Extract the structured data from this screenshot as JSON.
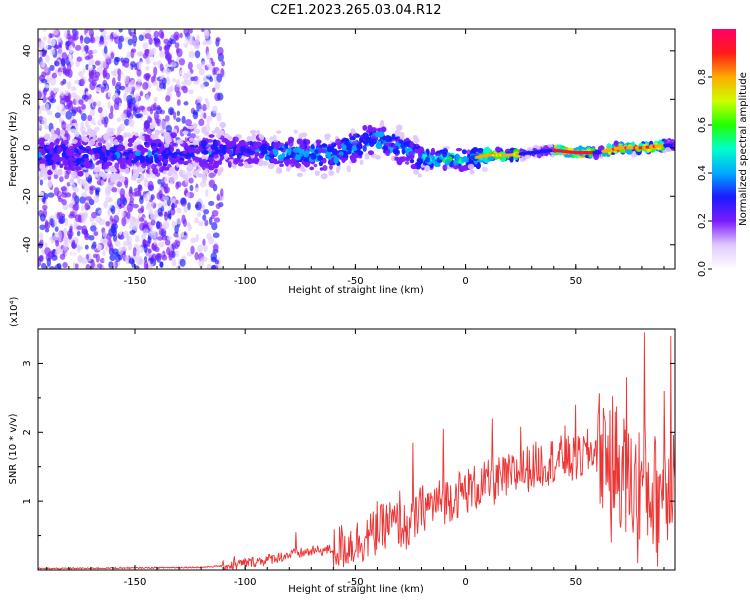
{
  "title": "C2E1.2023.265.03.04.R12",
  "chart_data": [
    {
      "type": "heatmap",
      "xlabel": "Height of straight line (km)",
      "ylabel": "Frequency (Hz)",
      "xlim": [
        -194,
        95
      ],
      "ylim": [
        -50,
        49
      ],
      "xticks": [
        -150,
        -100,
        -50,
        0,
        50
      ],
      "yticks": [
        -40,
        -20,
        0,
        20,
        40
      ],
      "colorbar": {
        "label": "Normalized spectral amplitude",
        "range": [
          0.0,
          1.0
        ],
        "ticks": [
          "0.0",
          "0.2",
          "0.4",
          "0.6",
          "0.8"
        ],
        "colormap": [
          "#ffffff",
          "#e0c8ff",
          "#7a1cff",
          "#1a1aff",
          "#00aaff",
          "#00ffcc",
          "#22ff00",
          "#ccff00",
          "#ffaa00",
          "#ff1a1a",
          "#ff0066"
        ]
      },
      "ridge_frequency_hz": {
        "x": [
          -190,
          -150,
          -120,
          -100,
          -80,
          -60,
          -40,
          -20,
          0,
          10,
          20,
          30,
          40,
          50,
          60,
          70,
          80,
          90
        ],
        "y": [
          -3,
          -3,
          -2,
          -1,
          -2,
          -3,
          4,
          -4,
          -5,
          -3,
          -3,
          -2,
          -1,
          -2,
          -2,
          0,
          0,
          1
        ]
      }
    },
    {
      "type": "line",
      "xlabel": "Height of straight line (km)",
      "ylabel": "SNR (10 * v/v)",
      "y_multiplier": "(x10⁴)",
      "xlim": [
        -194,
        95
      ],
      "ylim": [
        0,
        3.5
      ],
      "xticks": [
        -150,
        -100,
        -50,
        0,
        50
      ],
      "yticks": [
        "1",
        "2",
        "3"
      ],
      "line_color": "#ee3333",
      "series": [
        {
          "x": [
            -194,
            -150,
            -120,
            -105,
            -100,
            -90,
            -80,
            -70,
            -60,
            -50,
            -40,
            -35,
            -25,
            -20,
            -10,
            0,
            10,
            20,
            30,
            40,
            45,
            50,
            55,
            60,
            65,
            70,
            75,
            80,
            85,
            90,
            95
          ],
          "y": [
            0.02,
            0.03,
            0.04,
            0.07,
            0.1,
            0.15,
            0.22,
            0.27,
            0.3,
            0.4,
            0.55,
            0.7,
            0.6,
            0.9,
            1.0,
            1.15,
            1.25,
            1.35,
            1.5,
            1.6,
            1.62,
            1.58,
            1.7,
            1.75,
            1.7,
            1.5,
            1.2,
            1.3,
            1.1,
            1.2,
            1.5
          ]
        }
      ],
      "peaks": {
        "x": [
          -105,
          -77,
          -40,
          -30,
          -24,
          -10,
          12,
          25,
          45,
          50,
          63,
          66,
          73,
          78,
          81,
          87,
          90,
          93
        ],
        "y": [
          0.2,
          0.55,
          1.0,
          1.15,
          1.85,
          2.05,
          2.2,
          2.08,
          2.1,
          2.4,
          2.2,
          0.4,
          2.8,
          0.1,
          3.45,
          0.05,
          2.6,
          3.4
        ]
      }
    }
  ]
}
